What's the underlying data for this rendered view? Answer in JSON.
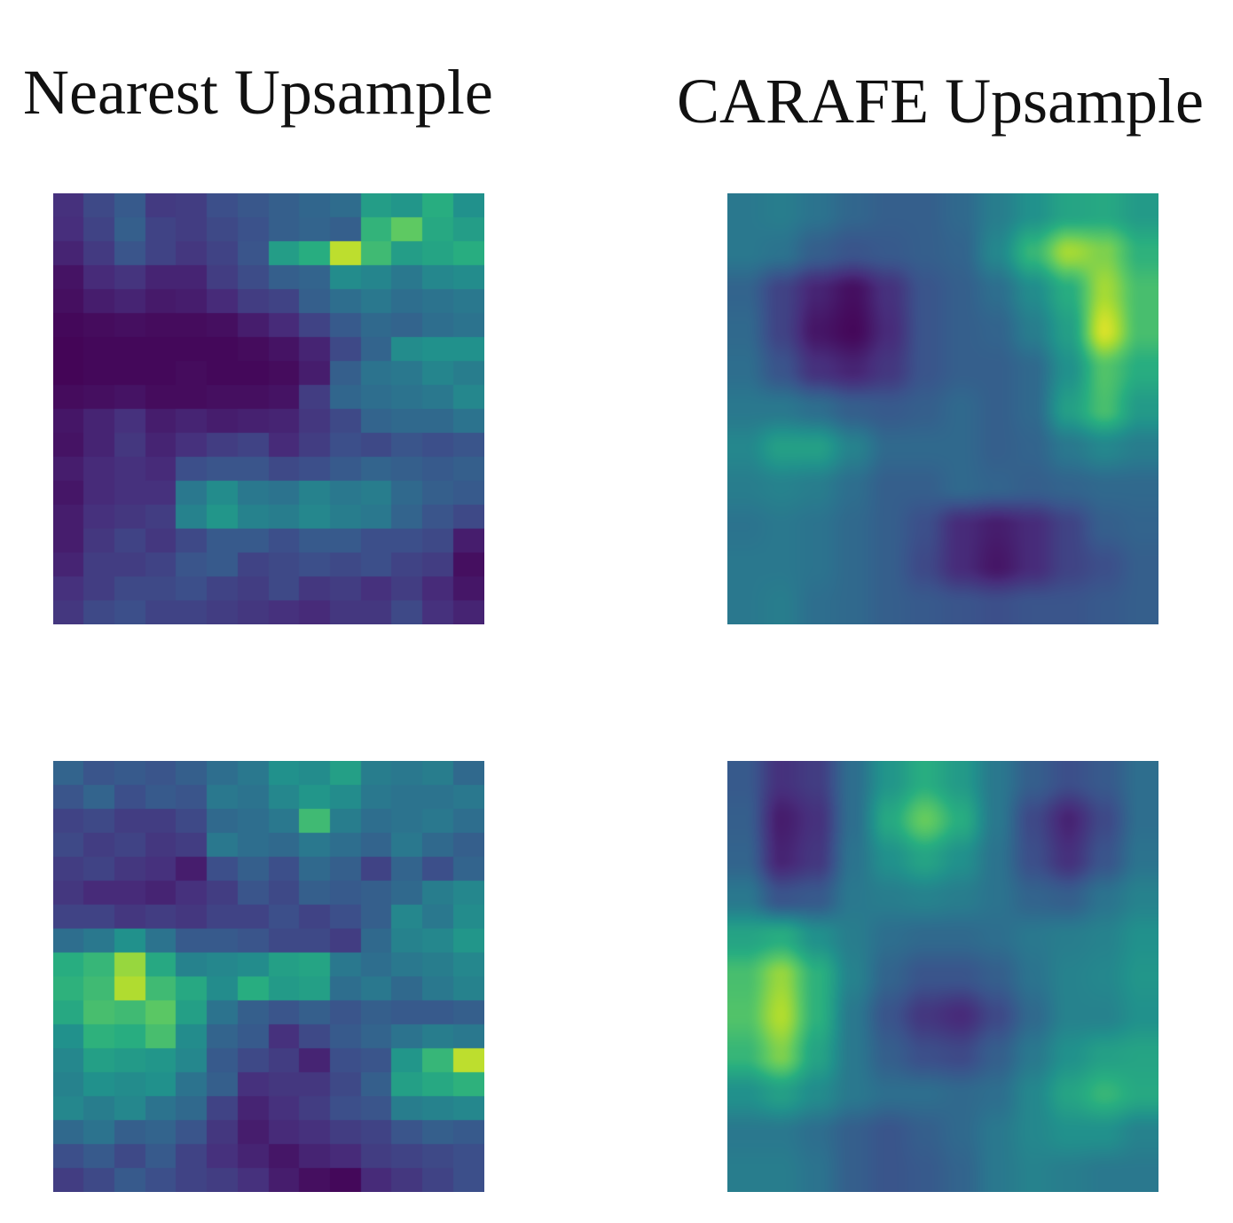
{
  "chart_data": {
    "type": "heatmap",
    "colormap": "viridis",
    "colormap_stops": [
      "#440154",
      "#472d7b",
      "#3b528b",
      "#2c728e",
      "#21918c",
      "#28ae80",
      "#5ec962",
      "#addc30",
      "#fde725"
    ],
    "titles": [
      "Nearest Upsample",
      "CARAFE Upsample"
    ],
    "panels": [
      {
        "column": "Nearest Upsample",
        "row": 1,
        "style": "blocky",
        "grid": [
          [
            0.14,
            0.22,
            0.28,
            0.17,
            0.18,
            0.24,
            0.27,
            0.3,
            0.33,
            0.35,
            0.55,
            0.52,
            0.62,
            0.5
          ],
          [
            0.13,
            0.2,
            0.3,
            0.2,
            0.18,
            0.22,
            0.25,
            0.3,
            0.32,
            0.3,
            0.65,
            0.75,
            0.6,
            0.55
          ],
          [
            0.1,
            0.17,
            0.26,
            0.2,
            0.16,
            0.2,
            0.26,
            0.55,
            0.62,
            0.9,
            0.68,
            0.55,
            0.58,
            0.62
          ],
          [
            0.05,
            0.12,
            0.15,
            0.1,
            0.1,
            0.18,
            0.23,
            0.3,
            0.32,
            0.48,
            0.45,
            0.4,
            0.46,
            0.48
          ],
          [
            0.04,
            0.08,
            0.1,
            0.07,
            0.08,
            0.12,
            0.18,
            0.2,
            0.3,
            0.36,
            0.4,
            0.36,
            0.38,
            0.4
          ],
          [
            0.02,
            0.03,
            0.04,
            0.03,
            0.03,
            0.04,
            0.08,
            0.12,
            0.2,
            0.28,
            0.34,
            0.32,
            0.36,
            0.38
          ],
          [
            0.01,
            0.02,
            0.02,
            0.02,
            0.02,
            0.02,
            0.03,
            0.05,
            0.1,
            0.22,
            0.32,
            0.48,
            0.5,
            0.5
          ],
          [
            0.01,
            0.02,
            0.02,
            0.02,
            0.03,
            0.02,
            0.02,
            0.03,
            0.08,
            0.3,
            0.38,
            0.4,
            0.45,
            0.42
          ],
          [
            0.03,
            0.04,
            0.05,
            0.03,
            0.03,
            0.04,
            0.04,
            0.05,
            0.18,
            0.33,
            0.36,
            0.38,
            0.4,
            0.46
          ],
          [
            0.06,
            0.1,
            0.14,
            0.08,
            0.1,
            0.08,
            0.09,
            0.1,
            0.16,
            0.22,
            0.32,
            0.34,
            0.34,
            0.38
          ],
          [
            0.05,
            0.1,
            0.16,
            0.1,
            0.14,
            0.18,
            0.2,
            0.12,
            0.18,
            0.24,
            0.22,
            0.26,
            0.24,
            0.26
          ],
          [
            0.08,
            0.12,
            0.14,
            0.12,
            0.24,
            0.26,
            0.26,
            0.22,
            0.24,
            0.28,
            0.32,
            0.3,
            0.28,
            0.3
          ],
          [
            0.06,
            0.12,
            0.14,
            0.14,
            0.4,
            0.48,
            0.4,
            0.38,
            0.44,
            0.4,
            0.42,
            0.34,
            0.3,
            0.28
          ],
          [
            0.08,
            0.14,
            0.16,
            0.18,
            0.44,
            0.52,
            0.44,
            0.42,
            0.46,
            0.42,
            0.4,
            0.32,
            0.26,
            0.22
          ],
          [
            0.08,
            0.16,
            0.2,
            0.16,
            0.22,
            0.28,
            0.28,
            0.24,
            0.28,
            0.28,
            0.24,
            0.24,
            0.22,
            0.08
          ],
          [
            0.1,
            0.18,
            0.18,
            0.2,
            0.26,
            0.28,
            0.2,
            0.22,
            0.24,
            0.22,
            0.24,
            0.2,
            0.18,
            0.04
          ],
          [
            0.14,
            0.18,
            0.22,
            0.22,
            0.24,
            0.2,
            0.18,
            0.22,
            0.16,
            0.18,
            0.14,
            0.18,
            0.12,
            0.06
          ],
          [
            0.16,
            0.22,
            0.24,
            0.2,
            0.2,
            0.18,
            0.16,
            0.14,
            0.12,
            0.16,
            0.16,
            0.22,
            0.14,
            0.1
          ]
        ]
      },
      {
        "column": "CARAFE Upsample",
        "row": 1,
        "style": "smooth",
        "grid": [
          [
            0.4,
            0.42,
            0.38,
            0.33,
            0.3,
            0.3,
            0.34,
            0.42,
            0.5,
            0.58,
            0.6,
            0.54
          ],
          [
            0.4,
            0.38,
            0.3,
            0.26,
            0.28,
            0.3,
            0.32,
            0.46,
            0.66,
            0.86,
            0.8,
            0.64
          ],
          [
            0.32,
            0.2,
            0.1,
            0.04,
            0.14,
            0.26,
            0.3,
            0.36,
            0.48,
            0.62,
            0.86,
            0.7
          ],
          [
            0.34,
            0.2,
            0.06,
            0.02,
            0.12,
            0.26,
            0.3,
            0.32,
            0.42,
            0.56,
            0.94,
            0.7
          ],
          [
            0.36,
            0.26,
            0.14,
            0.1,
            0.16,
            0.26,
            0.3,
            0.3,
            0.34,
            0.5,
            0.72,
            0.62
          ],
          [
            0.4,
            0.4,
            0.36,
            0.3,
            0.28,
            0.3,
            0.34,
            0.3,
            0.34,
            0.56,
            0.7,
            0.54
          ],
          [
            0.46,
            0.56,
            0.56,
            0.44,
            0.34,
            0.34,
            0.34,
            0.3,
            0.32,
            0.4,
            0.46,
            0.42
          ],
          [
            0.42,
            0.44,
            0.42,
            0.36,
            0.3,
            0.3,
            0.34,
            0.32,
            0.3,
            0.32,
            0.34,
            0.34
          ],
          [
            0.38,
            0.4,
            0.38,
            0.34,
            0.3,
            0.24,
            0.12,
            0.08,
            0.12,
            0.2,
            0.3,
            0.32
          ],
          [
            0.4,
            0.4,
            0.38,
            0.34,
            0.3,
            0.22,
            0.12,
            0.06,
            0.12,
            0.2,
            0.24,
            0.3
          ],
          [
            0.4,
            0.42,
            0.36,
            0.34,
            0.3,
            0.28,
            0.26,
            0.24,
            0.26,
            0.26,
            0.28,
            0.3
          ]
        ]
      },
      {
        "column": "Nearest Upsample",
        "row": 2,
        "style": "blocky",
        "grid": [
          [
            0.32,
            0.26,
            0.28,
            0.26,
            0.3,
            0.36,
            0.4,
            0.5,
            0.48,
            0.56,
            0.42,
            0.4,
            0.42,
            0.34
          ],
          [
            0.26,
            0.32,
            0.24,
            0.28,
            0.26,
            0.4,
            0.38,
            0.46,
            0.52,
            0.48,
            0.4,
            0.38,
            0.38,
            0.4
          ],
          [
            0.2,
            0.22,
            0.18,
            0.18,
            0.22,
            0.34,
            0.36,
            0.4,
            0.68,
            0.42,
            0.36,
            0.38,
            0.4,
            0.36
          ],
          [
            0.22,
            0.18,
            0.2,
            0.16,
            0.18,
            0.4,
            0.36,
            0.34,
            0.4,
            0.36,
            0.32,
            0.4,
            0.34,
            0.3
          ],
          [
            0.18,
            0.2,
            0.16,
            0.14,
            0.08,
            0.24,
            0.3,
            0.24,
            0.34,
            0.3,
            0.2,
            0.32,
            0.24,
            0.32
          ],
          [
            0.16,
            0.12,
            0.12,
            0.1,
            0.14,
            0.18,
            0.26,
            0.22,
            0.3,
            0.28,
            0.3,
            0.34,
            0.42,
            0.46
          ],
          [
            0.2,
            0.2,
            0.16,
            0.18,
            0.16,
            0.2,
            0.2,
            0.24,
            0.2,
            0.24,
            0.3,
            0.46,
            0.4,
            0.48
          ],
          [
            0.36,
            0.4,
            0.5,
            0.38,
            0.28,
            0.28,
            0.26,
            0.22,
            0.22,
            0.18,
            0.34,
            0.44,
            0.46,
            0.52
          ],
          [
            0.62,
            0.66,
            0.84,
            0.6,
            0.44,
            0.46,
            0.48,
            0.56,
            0.58,
            0.4,
            0.36,
            0.4,
            0.42,
            0.46
          ],
          [
            0.64,
            0.68,
            0.88,
            0.68,
            0.6,
            0.48,
            0.62,
            0.54,
            0.56,
            0.36,
            0.4,
            0.34,
            0.4,
            0.44
          ],
          [
            0.6,
            0.7,
            0.68,
            0.74,
            0.56,
            0.38,
            0.3,
            0.26,
            0.3,
            0.26,
            0.3,
            0.28,
            0.28,
            0.3
          ],
          [
            0.5,
            0.64,
            0.62,
            0.7,
            0.48,
            0.32,
            0.28,
            0.14,
            0.22,
            0.28,
            0.32,
            0.38,
            0.42,
            0.4
          ],
          [
            0.46,
            0.56,
            0.54,
            0.52,
            0.46,
            0.28,
            0.22,
            0.18,
            0.1,
            0.24,
            0.26,
            0.52,
            0.66,
            0.9
          ],
          [
            0.44,
            0.5,
            0.48,
            0.5,
            0.38,
            0.3,
            0.14,
            0.16,
            0.16,
            0.22,
            0.3,
            0.56,
            0.6,
            0.64
          ],
          [
            0.46,
            0.42,
            0.46,
            0.38,
            0.34,
            0.2,
            0.1,
            0.14,
            0.18,
            0.24,
            0.26,
            0.42,
            0.44,
            0.46
          ],
          [
            0.34,
            0.38,
            0.3,
            0.32,
            0.26,
            0.16,
            0.08,
            0.12,
            0.14,
            0.18,
            0.2,
            0.26,
            0.3,
            0.28
          ],
          [
            0.24,
            0.28,
            0.22,
            0.28,
            0.2,
            0.14,
            0.1,
            0.06,
            0.1,
            0.12,
            0.18,
            0.2,
            0.22,
            0.24
          ],
          [
            0.18,
            0.22,
            0.28,
            0.24,
            0.2,
            0.18,
            0.14,
            0.08,
            0.04,
            0.02,
            0.12,
            0.16,
            0.2,
            0.24
          ]
        ]
      },
      {
        "column": "CARAFE Upsample",
        "row": 2,
        "style": "smooth",
        "grid": [
          [
            0.28,
            0.14,
            0.18,
            0.36,
            0.52,
            0.62,
            0.54,
            0.4,
            0.3,
            0.24,
            0.28,
            0.36
          ],
          [
            0.3,
            0.08,
            0.14,
            0.36,
            0.6,
            0.76,
            0.62,
            0.4,
            0.22,
            0.1,
            0.22,
            0.36
          ],
          [
            0.32,
            0.1,
            0.16,
            0.38,
            0.5,
            0.58,
            0.5,
            0.38,
            0.24,
            0.14,
            0.26,
            0.38
          ],
          [
            0.4,
            0.26,
            0.28,
            0.4,
            0.42,
            0.44,
            0.42,
            0.38,
            0.32,
            0.3,
            0.38,
            0.44
          ],
          [
            0.58,
            0.62,
            0.5,
            0.42,
            0.36,
            0.34,
            0.34,
            0.36,
            0.4,
            0.42,
            0.44,
            0.5
          ],
          [
            0.7,
            0.84,
            0.64,
            0.44,
            0.32,
            0.26,
            0.26,
            0.3,
            0.38,
            0.44,
            0.46,
            0.52
          ],
          [
            0.72,
            0.88,
            0.64,
            0.4,
            0.26,
            0.16,
            0.12,
            0.22,
            0.34,
            0.44,
            0.44,
            0.5
          ],
          [
            0.66,
            0.8,
            0.58,
            0.4,
            0.3,
            0.24,
            0.22,
            0.3,
            0.4,
            0.5,
            0.56,
            0.58
          ],
          [
            0.5,
            0.56,
            0.48,
            0.4,
            0.36,
            0.36,
            0.34,
            0.36,
            0.46,
            0.58,
            0.66,
            0.6
          ],
          [
            0.4,
            0.4,
            0.36,
            0.3,
            0.26,
            0.3,
            0.34,
            0.4,
            0.46,
            0.5,
            0.5,
            0.44
          ],
          [
            0.42,
            0.42,
            0.38,
            0.3,
            0.26,
            0.28,
            0.32,
            0.4,
            0.44,
            0.42,
            0.4,
            0.4
          ]
        ]
      }
    ]
  }
}
